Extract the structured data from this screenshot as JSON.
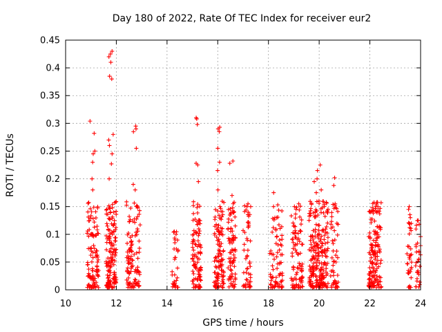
{
  "chart_data": {
    "type": "scatter",
    "title": "Day 180 of 2022, Rate Of TEC Index for receiver eur2",
    "xlabel": "GPS time / hours",
    "ylabel": "ROTI / TECUs",
    "xlim": [
      10,
      24
    ],
    "ylim": [
      0,
      0.45
    ],
    "xticks": [
      10,
      12,
      14,
      16,
      18,
      20,
      22,
      24
    ],
    "yticks": [
      0,
      0.05,
      0.1,
      0.15,
      0.2,
      0.25,
      0.3,
      0.35,
      0.4,
      0.45
    ],
    "grid": true,
    "marker": "plus",
    "color": "#ff0000",
    "clusters": [
      {
        "x": [
          10.85,
          11.3
        ],
        "y_max": 0.3,
        "n": 110,
        "peaks": [
          0.304,
          0.282,
          0.25,
          0.245,
          0.23,
          0.2,
          0.18
        ]
      },
      {
        "x": [
          11.6,
          12.0
        ],
        "y_max": 0.43,
        "n": 150,
        "peaks": [
          0.43,
          0.425,
          0.42,
          0.41,
          0.385,
          0.38,
          0.28,
          0.27,
          0.26,
          0.245,
          0.227,
          0.2
        ]
      },
      {
        "x": [
          12.4,
          12.95
        ],
        "y_max": 0.295,
        "n": 110,
        "peaks": [
          0.295,
          0.29,
          0.285,
          0.255,
          0.19,
          0.18
        ]
      },
      {
        "x": [
          14.2,
          14.45
        ],
        "y_max": 0.105,
        "n": 30,
        "peaks": [
          0.105,
          0.1,
          0.09
        ]
      },
      {
        "x": [
          15.0,
          15.35
        ],
        "y_max": 0.31,
        "n": 100,
        "peaks": [
          0.31,
          0.308,
          0.298,
          0.228,
          0.225,
          0.195
        ]
      },
      {
        "x": [
          15.85,
          16.25
        ],
        "y_max": 0.293,
        "n": 110,
        "peaks": [
          0.293,
          0.29,
          0.285,
          0.255,
          0.23,
          0.215,
          0.18
        ]
      },
      {
        "x": [
          16.4,
          16.7
        ],
        "y_max": 0.232,
        "n": 80,
        "peaks": [
          0.232,
          0.228,
          0.17
        ]
      },
      {
        "x": [
          17.0,
          17.3
        ],
        "y_max": 0.155,
        "n": 50,
        "peaks": [
          0.155,
          0.15,
          0.14
        ]
      },
      {
        "x": [
          18.05,
          18.55
        ],
        "y_max": 0.175,
        "n": 75,
        "peaks": [
          0.175,
          0.15,
          0.13
        ]
      },
      {
        "x": [
          18.9,
          19.35
        ],
        "y_max": 0.155,
        "n": 90,
        "peaks": [
          0.155,
          0.15,
          0.145
        ]
      },
      {
        "x": [
          19.6,
          20.35
        ],
        "y_max": 0.225,
        "n": 230,
        "peaks": [
          0.225,
          0.215,
          0.2,
          0.195,
          0.18,
          0.175,
          0.16
        ]
      },
      {
        "x": [
          20.45,
          20.75
        ],
        "y_max": 0.202,
        "n": 50,
        "peaks": [
          0.202,
          0.188,
          0.155
        ]
      },
      {
        "x": [
          21.95,
          22.45
        ],
        "y_max": 0.158,
        "n": 150,
        "peaks": [
          0.158,
          0.155,
          0.15,
          0.148
        ]
      },
      {
        "x": [
          23.45,
          23.65
        ],
        "y_max": 0.15,
        "n": 35,
        "peaks": [
          0.15,
          0.13
        ]
      },
      {
        "x": [
          23.8,
          24.0
        ],
        "y_max": 0.125,
        "n": 30,
        "peaks": [
          0.125,
          0.118
        ]
      }
    ]
  }
}
